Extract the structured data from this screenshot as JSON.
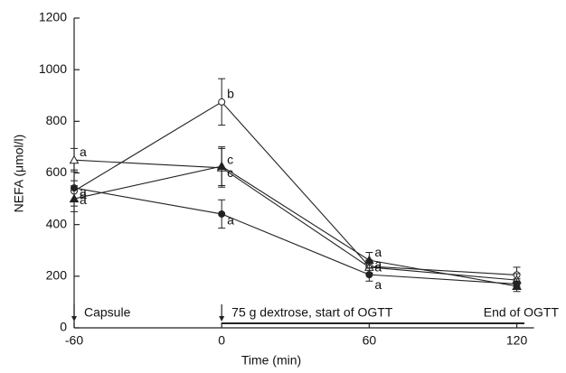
{
  "chart_data": {
    "type": "line",
    "x_label": "Time (min)",
    "y_label": "NEFA (μmol/l)",
    "x": [
      -60,
      0,
      60,
      120
    ],
    "xlim": [
      -60,
      127
    ],
    "xticks": [
      -60,
      0,
      60,
      120
    ],
    "ylim": [
      0,
      1200
    ],
    "yticks": [
      0,
      200,
      400,
      600,
      800,
      1000,
      1200
    ],
    "series": [
      {
        "marker": "circle",
        "filled": false,
        "color": "#222222",
        "values": [
          530,
          875,
          238,
          205
        ],
        "errors": [
          40,
          90,
          25,
          30
        ],
        "letters": [
          "a",
          "b",
          "a",
          null
        ]
      },
      {
        "marker": "triangle",
        "filled": false,
        "color": "#222222",
        "values": [
          650,
          620,
          235,
          185
        ],
        "errors": [
          45,
          75,
          25,
          25
        ],
        "letters": [
          "a",
          "c",
          "a",
          null
        ]
      },
      {
        "marker": "circle",
        "filled": true,
        "color": "#222222",
        "values": [
          542,
          441,
          206,
          170
        ],
        "errors": [
          70,
          55,
          25,
          20
        ],
        "letters": [
          "a",
          "a",
          "a",
          null
        ]
      },
      {
        "marker": "triangle",
        "filled": true,
        "color": "#222222",
        "values": [
          500,
          626,
          262,
          161
        ],
        "errors": [
          50,
          75,
          30,
          20
        ],
        "letters": [
          "a",
          "c",
          "a",
          null
        ]
      }
    ],
    "annotations": [
      "Capsule",
      "75 g dextrose, start of OGTT",
      "End of OGTT"
    ]
  }
}
